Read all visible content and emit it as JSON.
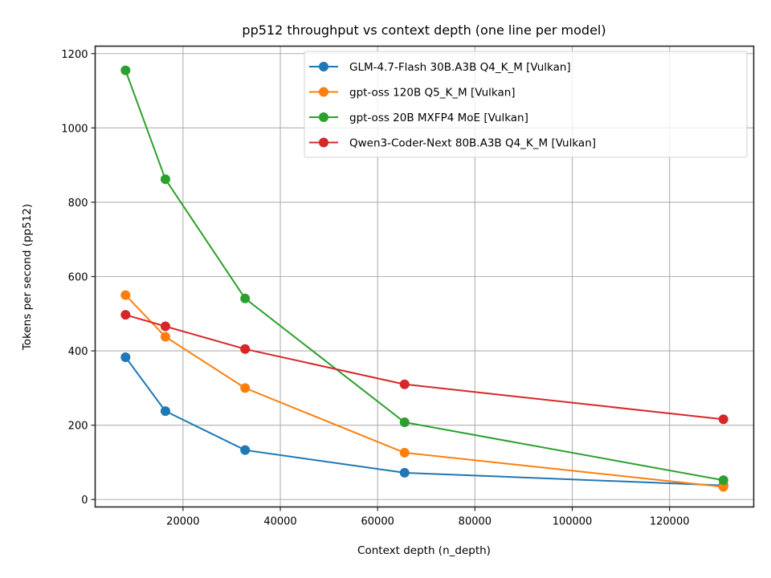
{
  "chart_data": {
    "type": "line",
    "title": "pp512 throughput vs context depth (one line per model)",
    "xlabel": "Context depth (n_depth)",
    "ylabel": "Tokens per second (pp512)",
    "xlim": [
      1950,
      137300
    ],
    "ylim": [
      -20,
      1220
    ],
    "xticks": [
      20000,
      40000,
      60000,
      80000,
      100000,
      120000
    ],
    "yticks": [
      0,
      200,
      400,
      600,
      800,
      1000,
      1200
    ],
    "grid": true,
    "legend_position": "upper-right",
    "x": [
      8192,
      16384,
      32768,
      65536,
      131072
    ],
    "series": [
      {
        "name": "GLM-4.7-Flash 30B.A3B Q4_K_M [Vulkan]",
        "color": "#1f77b4",
        "values": [
          383,
          238,
          133,
          72,
          38
        ]
      },
      {
        "name": "gpt-oss 120B Q5_K_M [Vulkan]",
        "color": "#ff7f0e",
        "values": [
          550,
          438,
          300,
          126,
          34
        ]
      },
      {
        "name": "gpt-oss 20B MXFP4 MoE [Vulkan]",
        "color": "#2ca02c",
        "values": [
          1155,
          862,
          541,
          208,
          52
        ]
      },
      {
        "name": "Qwen3-Coder-Next 80B.A3B Q4_K_M [Vulkan]",
        "color": "#d62728",
        "values": [
          497,
          466,
          405,
          310,
          216
        ]
      }
    ]
  }
}
